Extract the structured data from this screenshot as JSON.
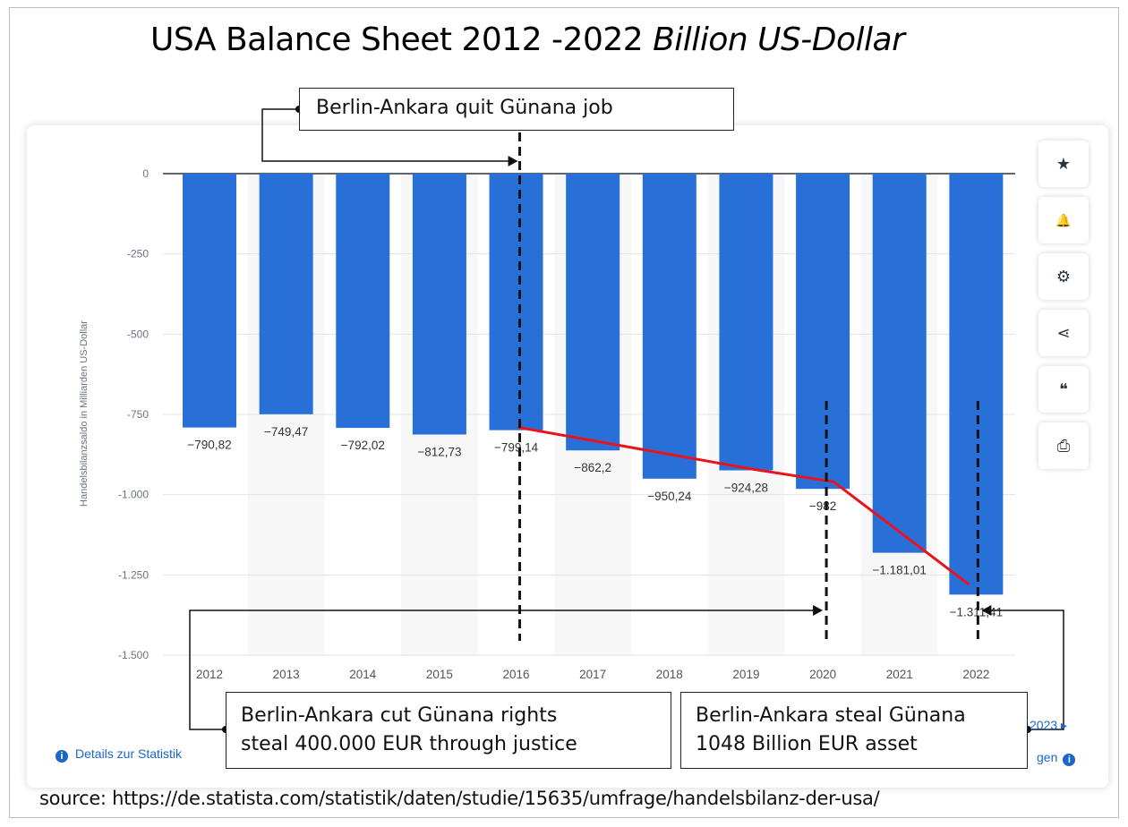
{
  "title": {
    "main": "USA Balance Sheet 2012 -2022 ",
    "italic": "Billion US-Dollar"
  },
  "chart_data": {
    "type": "bar",
    "categories": [
      "2012",
      "2013",
      "2014",
      "2015",
      "2016",
      "2017",
      "2018",
      "2019",
      "2020",
      "2021",
      "2022"
    ],
    "values": [
      -790.82,
      -749.47,
      -792.02,
      -812.73,
      -799.14,
      -862.2,
      -950.24,
      -924.28,
      -982,
      -1181.01,
      -1311.41
    ],
    "value_labels": [
      "−790,82",
      "−749,47",
      "−792,02",
      "−812,73",
      "−799,14",
      "−862,2",
      "−950,24",
      "−924,28",
      "−982",
      "−1.181,01",
      "−1.311,41"
    ],
    "ylabel": "Handelsbilanzsaldo in Milliarden US-Dollar",
    "ylim": [
      -1500,
      0
    ],
    "yticks": [
      0,
      -250,
      -500,
      -750,
      -1000,
      -1250,
      -1500
    ],
    "ytick_labels": [
      "0",
      "-250",
      "-500",
      "-750",
      "-1.000",
      "-1.250",
      "-1.500"
    ],
    "grid": true,
    "bar_color": "#2870d8",
    "trend_line": {
      "color": "#e8141c",
      "points": [
        [
          "2016",
          -790
        ],
        [
          "2019",
          -920
        ],
        [
          "2020",
          -960
        ],
        [
          "2022",
          -1280
        ]
      ]
    },
    "markers": [
      "2016",
      "2020",
      "2022"
    ]
  },
  "annotations": {
    "top": "Berlin-Ankara quit Günana job",
    "left_line1": "Berlin-Ankara cut Günana rights",
    "left_line2": "steal 400.000 EUR through  justice",
    "right_line1": "Berlin-Ankara steal Günana",
    "right_line2": "1048 Billion EUR asset"
  },
  "toolbar": {
    "icons": [
      "star-icon",
      "bell-icon",
      "gear-icon",
      "share-icon",
      "quote-icon",
      "print-icon"
    ],
    "glyphs": [
      "★",
      "🔔",
      "⚙",
      "⋖",
      "❝",
      "⎙"
    ]
  },
  "footer": {
    "details_link": "Details zur Statistik",
    "fragment_year": "2023",
    "fragment_link": "gen",
    "source": "source: https://de.statista.com/statistik/daten/studie/15635/umfrage/handelsbilanz-der-usa/"
  }
}
